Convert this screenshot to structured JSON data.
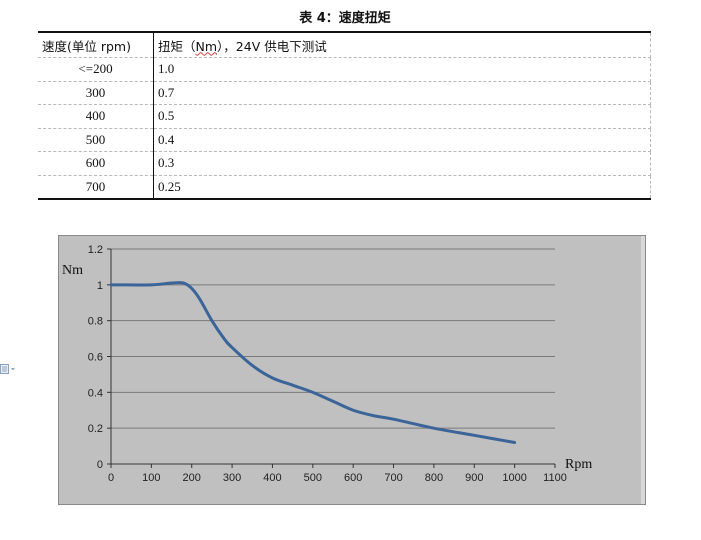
{
  "caption": "表 4：速度扭矩",
  "table": {
    "headers": [
      "速度(单位 rpm)",
      "扭矩（",
      "Nm",
      "），24V 供电下测试"
    ],
    "rows": [
      [
        "<=200",
        "1.0"
      ],
      [
        "300",
        "0.7"
      ],
      [
        "400",
        "0.5"
      ],
      [
        "500",
        "0.4"
      ],
      [
        "600",
        "0.3"
      ],
      [
        "700",
        "0.25"
      ]
    ]
  },
  "side_icon": "document-icon",
  "chart_data": {
    "type": "line",
    "title": "",
    "xlabel": "Rpm",
    "ylabel": "Nm",
    "xlim": [
      0,
      1100
    ],
    "ylim": [
      0,
      1.2
    ],
    "xticks": [
      0,
      100,
      200,
      300,
      400,
      500,
      600,
      700,
      800,
      900,
      1000,
      1100
    ],
    "yticks": [
      0,
      0.2,
      0.4,
      0.6,
      0.8,
      1,
      1.2
    ],
    "grid": "horizontal",
    "series": [
      {
        "color": "#3b6498",
        "x": [
          0,
          100,
          150,
          180,
          200,
          220,
          250,
          280,
          300,
          350,
          400,
          450,
          500,
          550,
          600,
          650,
          700,
          800,
          900,
          1000
        ],
        "y": [
          1.0,
          1.0,
          1.01,
          1.01,
          0.98,
          0.92,
          0.8,
          0.7,
          0.65,
          0.55,
          0.48,
          0.44,
          0.4,
          0.35,
          0.3,
          0.27,
          0.25,
          0.2,
          0.16,
          0.12
        ]
      }
    ],
    "plot_background": "#c0c0c0"
  }
}
